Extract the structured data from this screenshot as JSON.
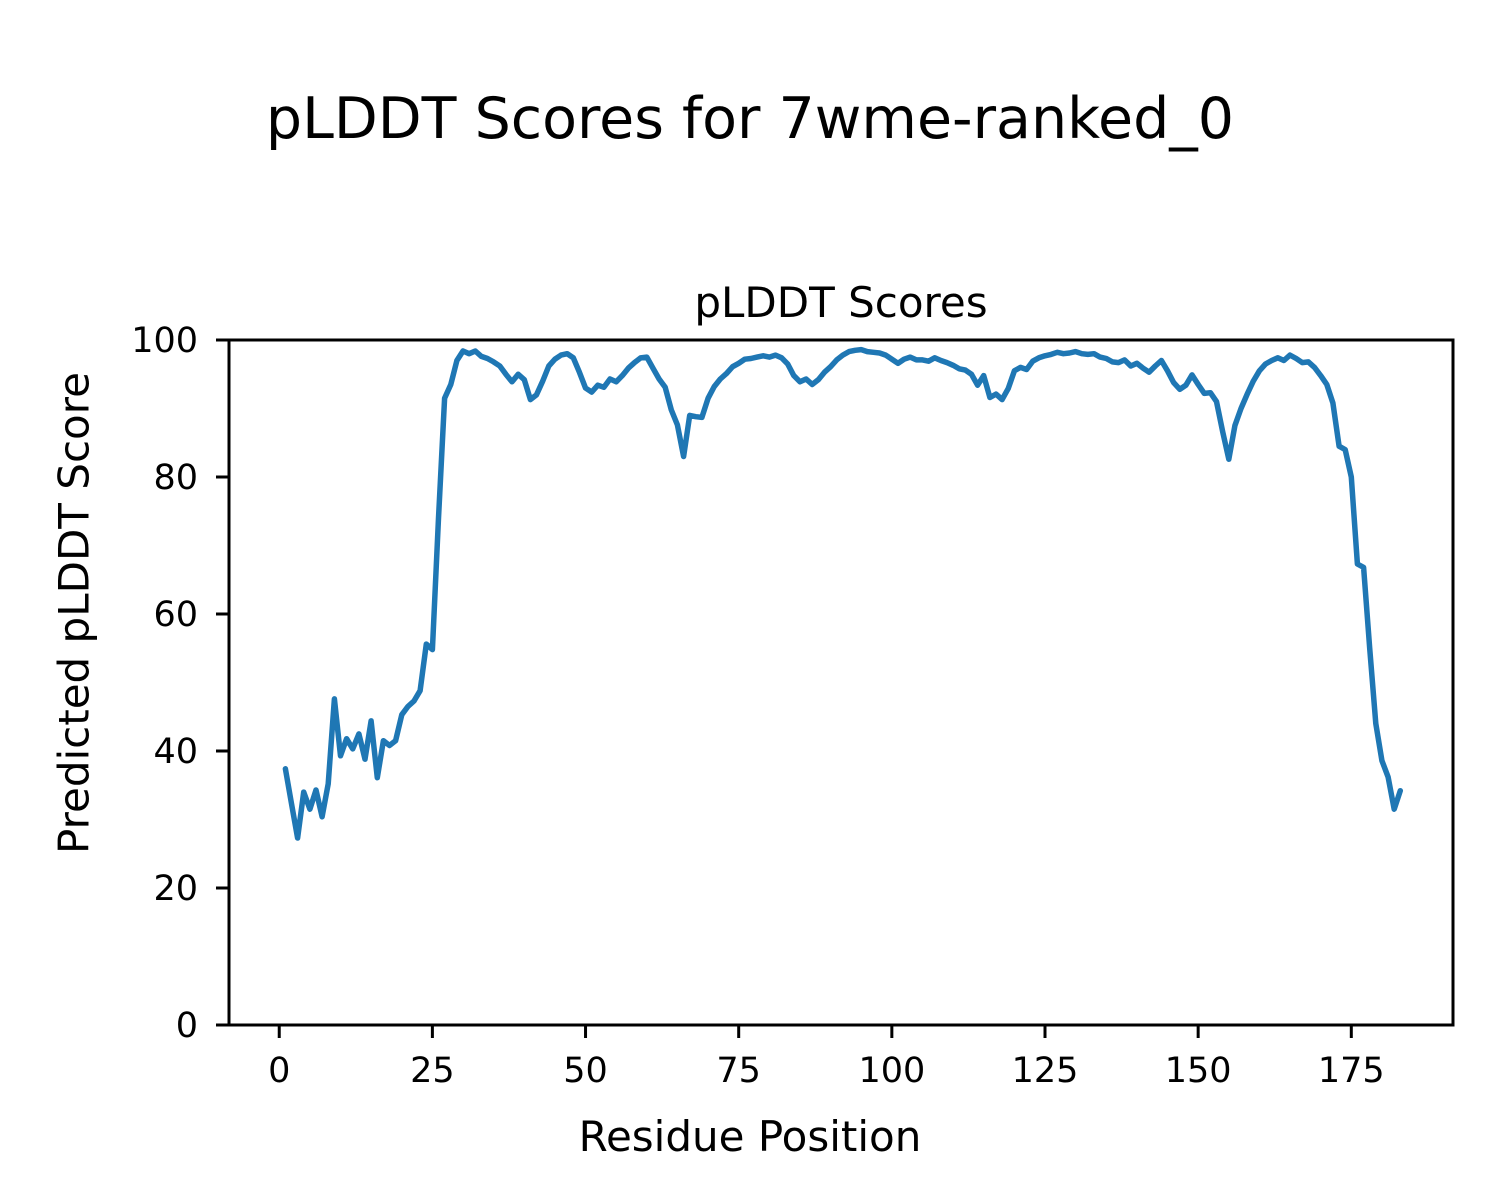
{
  "figure": {
    "suptitle": "pLDDT Scores for 7wme-ranked_0"
  },
  "chart_data": {
    "type": "line",
    "title": "pLDDT Scores",
    "xlabel": "Residue Position",
    "ylabel": "Predicted pLDDT Score",
    "xlim": [
      -8.2,
      191.6
    ],
    "ylim": [
      0,
      100
    ],
    "xticks": [
      0,
      25,
      50,
      75,
      100,
      125,
      150,
      175
    ],
    "yticks": [
      0,
      20,
      40,
      60,
      80,
      100
    ],
    "grid": false,
    "legend": false,
    "line_color": "#1f77b4",
    "axis_color": "#000000",
    "series": [
      {
        "name": "pLDDT",
        "x": [
          1,
          2,
          3,
          4,
          5,
          6,
          7,
          8,
          9,
          10,
          11,
          12,
          13,
          14,
          15,
          16,
          17,
          18,
          19,
          20,
          21,
          22,
          23,
          24,
          25,
          26,
          27,
          28,
          29,
          30,
          31,
          32,
          33,
          34,
          35,
          36,
          37,
          38,
          39,
          40,
          41,
          42,
          43,
          44,
          45,
          46,
          47,
          48,
          49,
          50,
          51,
          52,
          53,
          54,
          55,
          56,
          57,
          58,
          59,
          60,
          61,
          62,
          63,
          64,
          65,
          66,
          67,
          68,
          69,
          70,
          71,
          72,
          73,
          74,
          75,
          76,
          77,
          78,
          79,
          80,
          81,
          82,
          83,
          84,
          85,
          86,
          87,
          88,
          89,
          90,
          91,
          92,
          93,
          94,
          95,
          96,
          97,
          98,
          99,
          100,
          101,
          102,
          103,
          104,
          105,
          106,
          107,
          108,
          109,
          110,
          111,
          112,
          113,
          114,
          115,
          116,
          117,
          118,
          119,
          120,
          121,
          122,
          123,
          124,
          125,
          126,
          127,
          128,
          129,
          130,
          131,
          132,
          133,
          134,
          135,
          136,
          137,
          138,
          139,
          140,
          141,
          142,
          143,
          144,
          145,
          146,
          147,
          148,
          149,
          150,
          151,
          152,
          153,
          154,
          155,
          156,
          157,
          158,
          159,
          160,
          161,
          162,
          163,
          164,
          165,
          166,
          167,
          168,
          169,
          170,
          171,
          172,
          173,
          174,
          175,
          176,
          177,
          178,
          179,
          180,
          181,
          182,
          183
        ],
        "values": [
          37.4,
          32.3,
          27.3,
          34.0,
          31.5,
          34.3,
          30.4,
          35.2,
          47.6,
          39.3,
          41.8,
          40.3,
          42.5,
          38.8,
          44.4,
          36.1,
          41.5,
          40.8,
          41.5,
          45.3,
          46.5,
          47.3,
          48.8,
          55.6,
          54.8,
          74.0,
          91.5,
          93.5,
          97.0,
          98.4,
          98.0,
          98.4,
          97.6,
          97.3,
          96.8,
          96.2,
          95.0,
          93.9,
          95.0,
          94.2,
          91.3,
          92.0,
          94.0,
          96.2,
          97.2,
          97.8,
          98.0,
          97.4,
          95.3,
          93.0,
          92.4,
          93.4,
          93.1,
          94.3,
          93.9,
          94.8,
          95.9,
          96.7,
          97.4,
          97.5,
          95.9,
          94.3,
          93.1,
          89.8,
          87.6,
          83.0,
          89.0,
          88.8,
          88.7,
          91.5,
          93.2,
          94.3,
          95.1,
          96.1,
          96.6,
          97.2,
          97.3,
          97.5,
          97.7,
          97.5,
          97.8,
          97.4,
          96.5,
          94.8,
          93.9,
          94.3,
          93.5,
          94.2,
          95.3,
          96.1,
          97.1,
          97.8,
          98.3,
          98.5,
          98.6,
          98.3,
          98.2,
          98.1,
          97.8,
          97.2,
          96.6,
          97.2,
          97.5,
          97.1,
          97.1,
          96.9,
          97.4,
          97.0,
          96.7,
          96.3,
          95.8,
          95.6,
          95.0,
          93.4,
          94.8,
          91.6,
          92.1,
          91.3,
          92.9,
          95.5,
          96.0,
          95.7,
          96.9,
          97.4,
          97.7,
          97.9,
          98.2,
          98.0,
          98.1,
          98.3,
          98.0,
          97.9,
          98.0,
          97.5,
          97.3,
          96.8,
          96.7,
          97.1,
          96.2,
          96.6,
          95.9,
          95.3,
          96.2,
          97.0,
          95.5,
          93.8,
          92.8,
          93.4,
          94.9,
          93.5,
          92.2,
          92.3,
          91.0,
          86.6,
          82.6,
          87.5,
          90.0,
          92.1,
          94.0,
          95.5,
          96.5,
          97.0,
          97.4,
          97.0,
          97.8,
          97.3,
          96.7,
          96.8,
          96.0,
          94.8,
          93.5,
          90.8,
          84.5,
          84.0,
          80.0,
          67.3,
          66.8,
          55.0,
          44.0,
          38.6,
          36.2,
          31.5,
          34.2
        ]
      }
    ]
  }
}
